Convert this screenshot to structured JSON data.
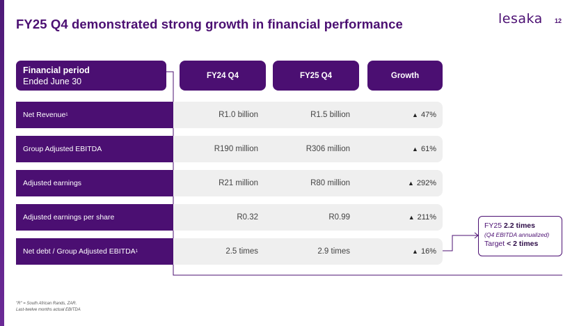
{
  "title": "FY25 Q4 demonstrated strong growth in financial performance",
  "logo_text": "lesaka",
  "page_number": "12",
  "header": {
    "label_line1": "Financial period",
    "label_line2": "Ended June 30",
    "col_fy24": "FY24 Q4",
    "col_fy25": "FY25 Q4",
    "col_growth": "Growth"
  },
  "rows": [
    {
      "label": "Net Revenue",
      "sup": "1",
      "fy24": "R1.0 billion",
      "fy25": "R1.5 billion",
      "growth": "47%"
    },
    {
      "label": "Group Adjusted EBITDA",
      "sup": "",
      "fy24": "R190 million",
      "fy25": "R306 million",
      "growth": "61%"
    },
    {
      "label": "Adjusted earnings",
      "sup": "",
      "fy24": "R21 million",
      "fy25": "R80 million",
      "growth": "292%"
    },
    {
      "label": "Adjusted earnings per share",
      "sup": "",
      "fy24": "R0.32",
      "fy25": "R0.99",
      "growth": "211%"
    },
    {
      "label": "Net debt / Group Adjusted EBITDA",
      "sup": "1",
      "fy24": "2.5 times",
      "fy25": "2.9 times",
      "growth": "16%"
    }
  ],
  "growth_marker": "▲",
  "callout": {
    "line1_prefix": "FY25 ",
    "line1_value": "2.2 times",
    "line2": "(Q4 EBITDA annualized)",
    "line3_prefix": "Target ",
    "line3_value": "< 2 times"
  },
  "footnotes": {
    "line1": "\"R\" = South African Rands, ZAR.",
    "line2": "Last-twelve months actual EBITDA"
  },
  "colors": {
    "brand": "#4b0f72",
    "row_bg": "#efefef"
  }
}
